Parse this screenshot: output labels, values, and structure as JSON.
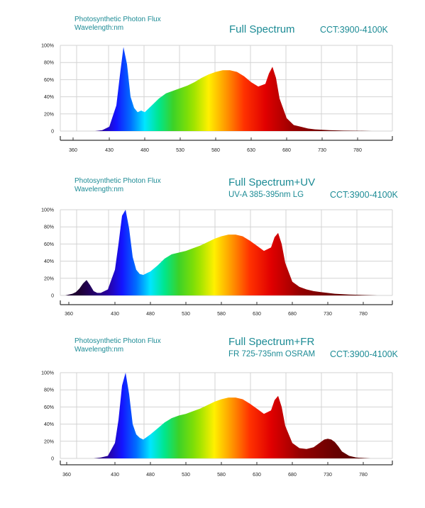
{
  "chart_data": [
    {
      "type": "area",
      "header_left": [
        "Photosynthetic Photon Flux",
        "Wavelength:nm"
      ],
      "title": "Full Spectrum",
      "subtitle": "",
      "cct": "CCT:3900-4100K",
      "x_ticks": [
        "360",
        "430",
        "480",
        "530",
        "580",
        "630",
        "680",
        "730",
        "780"
      ],
      "y_ticks": [
        "100%",
        "80%",
        "60%",
        "40%",
        "20%",
        "0"
      ],
      "ylim": [
        0,
        100
      ],
      "grid": true,
      "x": [
        380,
        390,
        400,
        410,
        420,
        430,
        440,
        445,
        450,
        455,
        460,
        465,
        470,
        475,
        480,
        490,
        500,
        510,
        520,
        530,
        540,
        550,
        560,
        570,
        580,
        590,
        600,
        610,
        620,
        630,
        640,
        650,
        655,
        660,
        665,
        670,
        680,
        690,
        700,
        710,
        720,
        740,
        760,
        780,
        800,
        810
      ],
      "y": [
        0,
        0,
        0,
        0,
        1,
        5,
        30,
        65,
        98,
        78,
        40,
        27,
        22,
        24,
        22,
        30,
        38,
        44,
        47,
        50,
        53,
        57,
        62,
        66,
        69,
        71,
        71,
        69,
        64,
        57,
        52,
        55,
        67,
        75,
        62,
        38,
        15,
        7,
        5,
        3,
        2,
        1,
        0.5,
        0.3,
        0,
        0
      ]
    },
    {
      "type": "area",
      "header_left": [
        "Photosynthetic Photon Flux",
        "Wavelength:nm"
      ],
      "title": "Full Spectrum+UV",
      "subtitle": "UV-A 385-395nm LG",
      "cct": "CCT:3900-4100K",
      "x_ticks": [
        "360",
        "430",
        "480",
        "530",
        "580",
        "630",
        "680",
        "730",
        "780"
      ],
      "y_ticks": [
        "100%",
        "80%",
        "60%",
        "40%",
        "20%",
        "0"
      ],
      "ylim": [
        0,
        100
      ],
      "grid": true,
      "x": [
        360,
        365,
        370,
        375,
        380,
        385,
        390,
        395,
        400,
        405,
        410,
        420,
        430,
        435,
        440,
        445,
        450,
        455,
        460,
        465,
        470,
        475,
        480,
        490,
        500,
        510,
        520,
        530,
        540,
        550,
        560,
        570,
        580,
        590,
        600,
        610,
        620,
        630,
        640,
        650,
        655,
        660,
        665,
        670,
        680,
        690,
        700,
        710,
        720,
        740,
        760,
        780,
        800
      ],
      "y": [
        0,
        1,
        2,
        4,
        8,
        14,
        18,
        12,
        5,
        3,
        3,
        7,
        30,
        60,
        93,
        100,
        78,
        45,
        30,
        25,
        24,
        26,
        28,
        35,
        43,
        48,
        50,
        52,
        55,
        58,
        62,
        66,
        69,
        71,
        71,
        69,
        64,
        58,
        52,
        56,
        68,
        73,
        60,
        38,
        16,
        10,
        7,
        5,
        4,
        2,
        1,
        0.5,
        0
      ]
    },
    {
      "type": "area",
      "header_left": [
        "Photosynthetic Photon Flux",
        "Wavelength:nm"
      ],
      "title": "Full Spectrum+FR",
      "subtitle": "FR 725-735nm OSRAM",
      "cct": "CCT:3900-4100K",
      "x_ticks": [
        "360",
        "430",
        "480",
        "530",
        "580",
        "630",
        "680",
        "730",
        "780"
      ],
      "y_ticks": [
        "100%",
        "80%",
        "60%",
        "40%",
        "20%",
        "0"
      ],
      "ylim": [
        0,
        100
      ],
      "grid": true,
      "x": [
        370,
        380,
        390,
        400,
        410,
        420,
        430,
        435,
        440,
        445,
        450,
        455,
        460,
        465,
        470,
        475,
        480,
        490,
        500,
        510,
        520,
        530,
        540,
        550,
        560,
        570,
        580,
        590,
        600,
        610,
        620,
        630,
        640,
        650,
        655,
        660,
        665,
        670,
        680,
        690,
        700,
        710,
        715,
        720,
        725,
        730,
        735,
        740,
        745,
        750,
        760,
        770,
        780,
        790
      ],
      "y": [
        0,
        0,
        0,
        0,
        1,
        3,
        18,
        45,
        85,
        100,
        75,
        40,
        28,
        24,
        22,
        25,
        28,
        35,
        42,
        47,
        50,
        52,
        55,
        58,
        62,
        66,
        69,
        71,
        71,
        69,
        64,
        58,
        52,
        56,
        68,
        73,
        60,
        38,
        18,
        12,
        11,
        13,
        16,
        19,
        22,
        23,
        22,
        19,
        14,
        8,
        3,
        1,
        0.5,
        0
      ]
    }
  ]
}
